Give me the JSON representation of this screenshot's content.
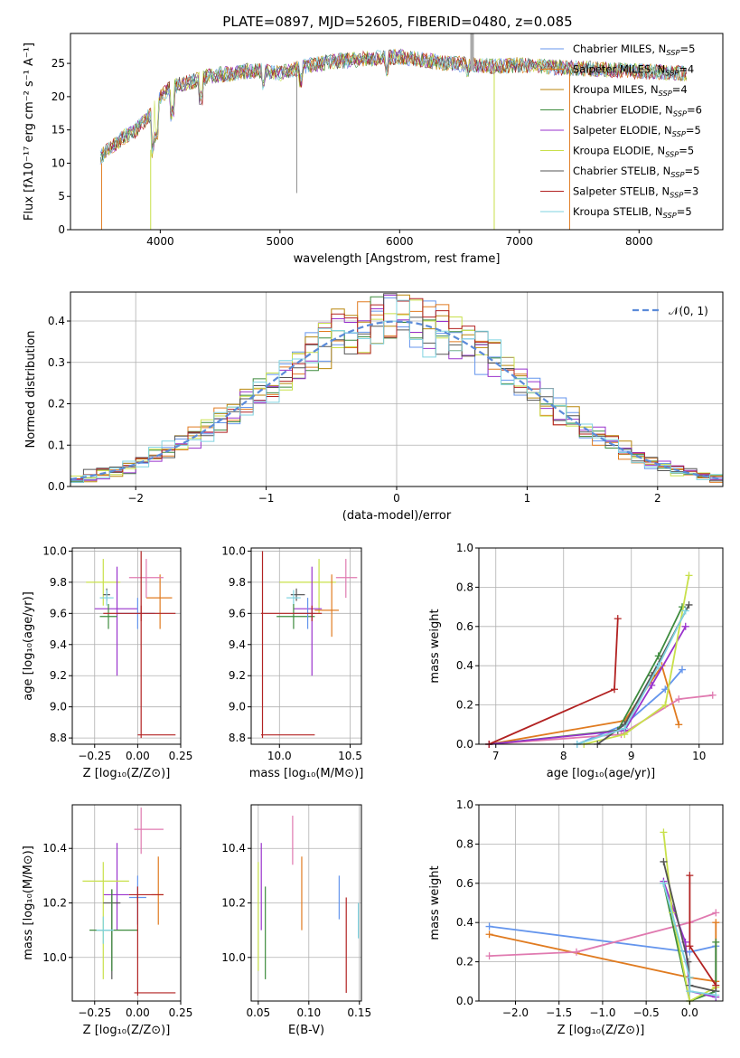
{
  "figure": {
    "title": "PLATE=0897, MJD=52605, FIBERID=0480, z=0.085"
  },
  "colors": {
    "chabrier_miles": "#6495ed",
    "salpeter_miles": "#e07b20",
    "kroupa_miles": "#b8860b",
    "chabrier_elodie": "#3d8b3d",
    "salpeter_elodie": "#9932cc",
    "kroupa_elodie": "#c8e04a",
    "chabrier_stelib": "#555555",
    "salpeter_stelib": "#b22222",
    "kroupa_stelib": "#7fd3e0",
    "pink": "#e07ab0"
  },
  "chart_data": [
    {
      "id": "spectrum",
      "type": "line",
      "xlabel": "wavelength [Angstrom, rest frame]",
      "ylabel": "Flux [fλ10⁻¹⁷ erg cm⁻² s⁻¹ A⁻¹]",
      "xlim": [
        3250,
        8700
      ],
      "ylim": [
        0,
        29.5
      ],
      "xticks": [
        4000,
        5000,
        6000,
        7000,
        8000
      ],
      "yticks": [
        0,
        5,
        10,
        15,
        20,
        25
      ],
      "grid": false,
      "legend_position": "top-right",
      "continuum_x": [
        3500,
        3600,
        3700,
        3800,
        3900,
        4000,
        4100,
        4200,
        4300,
        4400,
        4500,
        4600,
        4700,
        4800,
        4900,
        5000,
        5200,
        5400,
        5600,
        5800,
        6000,
        6200,
        6400,
        6600,
        6800,
        7000,
        7200,
        7400,
        7600,
        7800,
        8000,
        8200,
        8400
      ],
      "continuum_y": [
        11,
        12.5,
        14,
        15,
        17,
        20,
        21.5,
        22,
        22.5,
        23,
        23.3,
        23.5,
        23.8,
        24,
        23.8,
        23.5,
        24.5,
        25.2,
        25.5,
        25.8,
        26,
        25.5,
        25,
        24.8,
        24.5,
        24.8,
        24.5,
        24.3,
        24.2,
        24,
        23.8,
        23.7,
        23.5
      ],
      "series": [
        {
          "label_main": "Chabrier MILES, N",
          "label_sub": "SSP",
          "label_tail": "=5"
        },
        {
          "label_main": "Salpeter MILES, N",
          "label_sub": "SSP",
          "label_tail": "=4"
        },
        {
          "label_main": "Kroupa MILES, N",
          "label_sub": "SSP",
          "label_tail": "=4"
        },
        {
          "label_main": "Chabrier ELODIE, N",
          "label_sub": "SSP",
          "label_tail": "=6"
        },
        {
          "label_main": "Salpeter ELODIE, N",
          "label_sub": "SSP",
          "label_tail": "=5"
        },
        {
          "label_main": "Kroupa ELODIE, N",
          "label_sub": "SSP",
          "label_tail": "=5"
        },
        {
          "label_main": "Chabrier STELIB, N",
          "label_sub": "SSP",
          "label_tail": "=5"
        },
        {
          "label_main": "Salpeter STELIB, N",
          "label_sub": "SSP",
          "label_tail": "=3"
        },
        {
          "label_main": "Kroupa STELIB, N",
          "label_sub": "SSP",
          "label_tail": "=5"
        }
      ]
    },
    {
      "id": "residuals",
      "type": "line",
      "xlabel": "(data-model)/error",
      "ylabel": "Normed distribution",
      "xlim": [
        -2.5,
        2.5
      ],
      "ylim": [
        0,
        0.47
      ],
      "xticks": [
        -2,
        -1,
        0,
        1,
        2
      ],
      "yticks": [
        0.0,
        0.1,
        0.2,
        0.3,
        0.4
      ],
      "grid": true,
      "legend_position": "top-right",
      "legend_label": "𝒩(0, 1)",
      "bin_width": 0.1
    },
    {
      "id": "age_vs_Z",
      "type": "scatter",
      "xlabel": "Z [log₁₀(Z/Z⊙)]",
      "ylabel": "age  [log₁₀(age/yr)]",
      "xlim": [
        -0.38,
        0.25
      ],
      "ylim": [
        8.76,
        10.02
      ],
      "xticks": [
        -0.25,
        0.0,
        0.25
      ],
      "xticklabels": [
        "−0.25",
        "0.00",
        "0.25"
      ],
      "yticks": [
        8.8,
        9.0,
        9.2,
        9.4,
        9.6,
        9.8,
        10.0
      ],
      "grid": true,
      "points": [
        {
          "color": "kroupa_elodie",
          "x": -0.2,
          "xlo": -0.3,
          "xhi": -0.1,
          "y": 9.8,
          "ylo": 9.65,
          "yhi": 9.95
        },
        {
          "color": "chabrier_stelib",
          "x": -0.18,
          "xlo": -0.2,
          "xhi": -0.16,
          "y": 9.72,
          "ylo": 9.68,
          "yhi": 9.76
        },
        {
          "color": "kroupa_stelib",
          "x": -0.18,
          "xlo": -0.22,
          "xhi": -0.14,
          "y": 9.7,
          "ylo": 9.65,
          "yhi": 9.75
        },
        {
          "color": "salpeter_elodie",
          "x": -0.12,
          "xlo": -0.25,
          "xhi": 0.0,
          "y": 9.63,
          "ylo": 9.2,
          "yhi": 9.9
        },
        {
          "color": "chabrier_elodie",
          "x": -0.17,
          "xlo": -0.22,
          "xhi": -0.12,
          "y": 9.58,
          "ylo": 9.5,
          "yhi": 9.66
        },
        {
          "color": "chabrier_miles",
          "x": 0.0,
          "xlo": -0.12,
          "xhi": 0.1,
          "y": 9.6,
          "ylo": 9.5,
          "yhi": 9.7
        },
        {
          "color": "salpeter_miles",
          "x": 0.13,
          "xlo": 0.05,
          "xhi": 0.2,
          "y": 9.7,
          "ylo": 9.5,
          "yhi": 9.85
        },
        {
          "color": "pink",
          "x": 0.05,
          "xlo": -0.05,
          "xhi": 0.15,
          "y": 9.83,
          "ylo": 9.7,
          "yhi": 9.95
        },
        {
          "color": "salpeter_stelib",
          "x": 0.02,
          "xlo": -0.2,
          "xhi": 0.22,
          "y": 9.6,
          "ylo": 9.55,
          "yhi": 9.65
        },
        {
          "color": "salpeter_stelib",
          "x": 0.02,
          "xlo": 0.0,
          "xhi": 0.22,
          "y": 8.82,
          "ylo": 8.8,
          "yhi": 10.0
        }
      ]
    },
    {
      "id": "age_vs_mass",
      "type": "scatter",
      "xlabel": "mass [log₁₀(M/M⊙)]",
      "ylabel": "",
      "xlim": [
        9.8,
        10.58
      ],
      "ylim": [
        8.76,
        10.02
      ],
      "xticks": [
        10.0,
        10.5
      ],
      "xticklabels": [
        "10.0",
        "10.5"
      ],
      "yticks": [
        8.8,
        9.0,
        9.2,
        9.4,
        9.6,
        9.8,
        10.0
      ],
      "grid": true,
      "points": [
        {
          "color": "kroupa_elodie",
          "x": 10.28,
          "xlo": 10.0,
          "xhi": 10.4,
          "y": 9.8,
          "ylo": 9.6,
          "yhi": 9.95
        },
        {
          "color": "chabrier_stelib",
          "x": 10.12,
          "xlo": 10.08,
          "xhi": 10.18,
          "y": 9.72,
          "ylo": 9.68,
          "yhi": 9.76
        },
        {
          "color": "kroupa_stelib",
          "x": 10.1,
          "xlo": 10.05,
          "xhi": 10.15,
          "y": 9.7,
          "ylo": 9.65,
          "yhi": 9.75
        },
        {
          "color": "salpeter_elodie",
          "x": 10.23,
          "xlo": 10.1,
          "xhi": 10.3,
          "y": 9.63,
          "ylo": 9.2,
          "yhi": 9.9
        },
        {
          "color": "chabrier_elodie",
          "x": 10.1,
          "xlo": 9.98,
          "xhi": 10.25,
          "y": 9.58,
          "ylo": 9.5,
          "yhi": 9.66
        },
        {
          "color": "chabrier_miles",
          "x": 10.2,
          "xlo": 10.1,
          "xhi": 10.25,
          "y": 9.6,
          "ylo": 9.5,
          "yhi": 9.7
        },
        {
          "color": "salpeter_miles",
          "x": 10.37,
          "xlo": 10.25,
          "xhi": 10.42,
          "y": 9.62,
          "ylo": 9.45,
          "yhi": 9.85
        },
        {
          "color": "pink",
          "x": 10.47,
          "xlo": 10.4,
          "xhi": 10.55,
          "y": 9.83,
          "ylo": 9.7,
          "yhi": 9.95
        },
        {
          "color": "salpeter_stelib",
          "x": 9.88,
          "xlo": 9.87,
          "xhi": 10.25,
          "y": 8.82,
          "ylo": 8.8,
          "yhi": 10.0
        },
        {
          "color": "salpeter_stelib",
          "x": 10.23,
          "xlo": 9.87,
          "xhi": 10.3,
          "y": 9.6,
          "ylo": 9.55,
          "yhi": 9.65
        }
      ]
    },
    {
      "id": "weight_vs_age",
      "type": "line",
      "xlabel": "age  [log₁₀(age/yr)]",
      "ylabel": "mass weight",
      "xlim": [
        6.75,
        10.35
      ],
      "ylim": [
        0,
        1.0
      ],
      "xticks": [
        7,
        8,
        9,
        10
      ],
      "yticks": [
        0.0,
        0.2,
        0.4,
        0.6,
        0.8,
        1.0
      ],
      "grid": true,
      "series": [
        {
          "color": "chabrier_miles",
          "x": [
            8.2,
            8.9,
            9.5,
            9.75
          ],
          "y": [
            0.0,
            0.1,
            0.28,
            0.38
          ]
        },
        {
          "color": "salpeter_miles",
          "x": [
            6.9,
            8.9,
            9.45,
            9.7
          ],
          "y": [
            0.0,
            0.12,
            0.4,
            0.1
          ]
        },
        {
          "color": "pink",
          "x": [
            6.9,
            8.85,
            9.7,
            10.2
          ],
          "y": [
            0.0,
            0.05,
            0.23,
            0.25
          ]
        },
        {
          "color": "chabrier_elodie",
          "x": [
            6.9,
            8.8,
            9.4,
            9.75
          ],
          "y": [
            0.0,
            0.07,
            0.45,
            0.7
          ]
        },
        {
          "color": "salpeter_elodie",
          "x": [
            6.9,
            8.9,
            9.3,
            9.8
          ],
          "y": [
            0.0,
            0.07,
            0.3,
            0.6
          ]
        },
        {
          "color": "kroupa_elodie",
          "x": [
            8.3,
            8.9,
            9.5,
            9.85
          ],
          "y": [
            0.0,
            0.05,
            0.2,
            0.86
          ]
        },
        {
          "color": "chabrier_stelib",
          "x": [
            8.5,
            8.9,
            9.3,
            9.85
          ],
          "y": [
            0.0,
            0.1,
            0.35,
            0.71
          ]
        },
        {
          "color": "salpeter_stelib",
          "x": [
            6.9,
            8.75,
            8.8
          ],
          "y": [
            0.0,
            0.28,
            0.64
          ]
        },
        {
          "color": "kroupa_stelib",
          "x": [
            8.2,
            8.9,
            9.4,
            9.8
          ],
          "y": [
            0.0,
            0.08,
            0.4,
            0.68
          ]
        }
      ]
    },
    {
      "id": "mass_vs_Z",
      "type": "scatter",
      "xlabel": "Z [log₁₀(Z/Z⊙)]",
      "ylabel": "mass [log₁₀(M/M⊙)]",
      "xlim": [
        -0.38,
        0.25
      ],
      "ylim": [
        9.84,
        10.56
      ],
      "xticks": [
        -0.25,
        0.0,
        0.25
      ],
      "xticklabels": [
        "−0.25",
        "0.00",
        "0.25"
      ],
      "yticks": [
        10.0,
        10.2,
        10.4
      ],
      "grid": true,
      "points": [
        {
          "color": "pink",
          "x": 0.02,
          "xlo": -0.02,
          "xhi": 0.15,
          "y": 10.47,
          "ylo": 10.38,
          "yhi": 10.55
        },
        {
          "color": "salpeter_elodie",
          "x": -0.12,
          "xlo": -0.2,
          "xhi": -0.05,
          "y": 10.23,
          "ylo": 10.1,
          "yhi": 10.42
        },
        {
          "color": "kroupa_elodie",
          "x": -0.2,
          "xlo": -0.32,
          "xhi": -0.05,
          "y": 10.28,
          "ylo": 9.92,
          "yhi": 10.35
        },
        {
          "color": "chabrier_miles",
          "x": 0.0,
          "xlo": -0.05,
          "xhi": 0.05,
          "y": 10.22,
          "ylo": 10.12,
          "yhi": 10.3
        },
        {
          "color": "salpeter_miles",
          "x": 0.12,
          "xlo": 0.08,
          "xhi": 0.15,
          "y": 10.23,
          "ylo": 10.12,
          "yhi": 10.37
        },
        {
          "color": "salpeter_stelib",
          "x": 0.0,
          "xlo": -0.05,
          "xhi": 0.15,
          "y": 10.23,
          "ylo": 10.2,
          "yhi": 10.26
        },
        {
          "color": "chabrier_stelib",
          "x": -0.15,
          "xlo": -0.2,
          "xhi": -0.1,
          "y": 10.2,
          "ylo": 9.92,
          "yhi": 10.25
        },
        {
          "color": "chabrier_elodie",
          "x": -0.15,
          "xlo": -0.28,
          "xhi": 0.0,
          "y": 10.1,
          "ylo": 9.95,
          "yhi": 10.25
        },
        {
          "color": "kroupa_stelib",
          "x": -0.2,
          "xlo": -0.24,
          "xhi": -0.14,
          "y": 10.1,
          "ylo": 10.05,
          "yhi": 10.15
        },
        {
          "color": "salpeter_stelib",
          "x": 0.0,
          "xlo": -0.02,
          "xhi": 0.22,
          "y": 9.87,
          "ylo": 9.86,
          "yhi": 10.23
        }
      ]
    },
    {
      "id": "mass_vs_ebv",
      "type": "scatter",
      "xlabel": "E(B-V)",
      "ylabel": "",
      "xlim": [
        0.043,
        0.152
      ],
      "ylim": [
        9.84,
        10.56
      ],
      "xticks": [
        0.05,
        0.1,
        0.15
      ],
      "xticklabels": [
        "0.05",
        "0.10",
        "0.15"
      ],
      "yticks": [
        10.0,
        10.2,
        10.4
      ],
      "grid": true,
      "points": [
        {
          "color": "kroupa_elodie",
          "x": 0.05,
          "xlo": 0.05,
          "xhi": 0.05,
          "y": 10.15,
          "ylo": 9.95,
          "yhi": 10.35
        },
        {
          "color": "salpeter_elodie",
          "x": 0.053,
          "xlo": 0.053,
          "xhi": 0.053,
          "y": 10.25,
          "ylo": 10.1,
          "yhi": 10.42
        },
        {
          "color": "chabrier_elodie",
          "x": 0.057,
          "xlo": 0.057,
          "xhi": 0.057,
          "y": 10.1,
          "ylo": 9.92,
          "yhi": 10.26
        },
        {
          "color": "pink",
          "x": 0.084,
          "xlo": 0.084,
          "xhi": 0.084,
          "y": 10.43,
          "ylo": 10.34,
          "yhi": 10.52
        },
        {
          "color": "salpeter_miles",
          "x": 0.093,
          "xlo": 0.093,
          "xhi": 0.093,
          "y": 10.23,
          "ylo": 10.1,
          "yhi": 10.37
        },
        {
          "color": "chabrier_miles",
          "x": 0.13,
          "xlo": 0.13,
          "xhi": 0.13,
          "y": 10.22,
          "ylo": 10.14,
          "yhi": 10.3
        },
        {
          "color": "salpeter_stelib",
          "x": 0.137,
          "xlo": 0.137,
          "xhi": 0.137,
          "y": 10.0,
          "ylo": 9.87,
          "yhi": 10.22
        },
        {
          "color": "kroupa_stelib",
          "x": 0.149,
          "xlo": 0.149,
          "xhi": 0.149,
          "y": 10.13,
          "ylo": 10.07,
          "yhi": 10.2
        }
      ]
    },
    {
      "id": "weight_vs_Z",
      "type": "line",
      "xlabel": "Z [log₁₀(Z/Z⊙)]",
      "ylabel": "mass weight",
      "xlim": [
        -2.42,
        0.38
      ],
      "ylim": [
        0,
        1.0
      ],
      "xticks": [
        -2.0,
        -1.5,
        -1.0,
        -0.5,
        0.0
      ],
      "xticklabels": [
        "−2.0",
        "−1.5",
        "−1.0",
        "−0.5",
        "0.0"
      ],
      "yticks": [
        0.0,
        0.2,
        0.4,
        0.6,
        0.8,
        1.0
      ],
      "grid": true,
      "series": [
        {
          "color": "chabrier_miles",
          "x": [
            -2.3,
            0.0,
            0.3,
            0.3
          ],
          "y": [
            0.38,
            0.25,
            0.28,
            0.05
          ]
        },
        {
          "color": "salpeter_miles",
          "x": [
            -2.3,
            0.0,
            0.3,
            0.3
          ],
          "y": [
            0.34,
            0.12,
            0.1,
            0.4
          ]
        },
        {
          "color": "pink",
          "x": [
            -2.3,
            -1.3,
            0.0,
            0.3
          ],
          "y": [
            0.23,
            0.25,
            0.4,
            0.45
          ]
        },
        {
          "color": "chabrier_elodie",
          "x": [
            -0.3,
            0.0,
            0.3,
            0.3
          ],
          "y": [
            0.6,
            0.0,
            0.05,
            0.3
          ]
        },
        {
          "color": "salpeter_elodie",
          "x": [
            -0.3,
            -0.05,
            0.0,
            0.3
          ],
          "y": [
            0.61,
            0.3,
            0.05,
            0.02
          ]
        },
        {
          "color": "kroupa_elodie",
          "x": [
            -0.3,
            -0.2,
            0.0,
            0.3
          ],
          "y": [
            0.86,
            0.45,
            0.0,
            0.07
          ]
        },
        {
          "color": "chabrier_stelib",
          "x": [
            -0.3,
            -0.02,
            0.0,
            0.3
          ],
          "y": [
            0.71,
            0.2,
            0.08,
            0.05
          ]
        },
        {
          "color": "salpeter_stelib",
          "x": [
            0.0,
            0.0,
            0.3
          ],
          "y": [
            0.64,
            0.28,
            0.08
          ]
        },
        {
          "color": "kroupa_stelib",
          "x": [
            -0.3,
            0.0,
            0.0,
            0.3
          ],
          "y": [
            0.6,
            0.12,
            0.05,
            0.03
          ]
        }
      ]
    }
  ]
}
